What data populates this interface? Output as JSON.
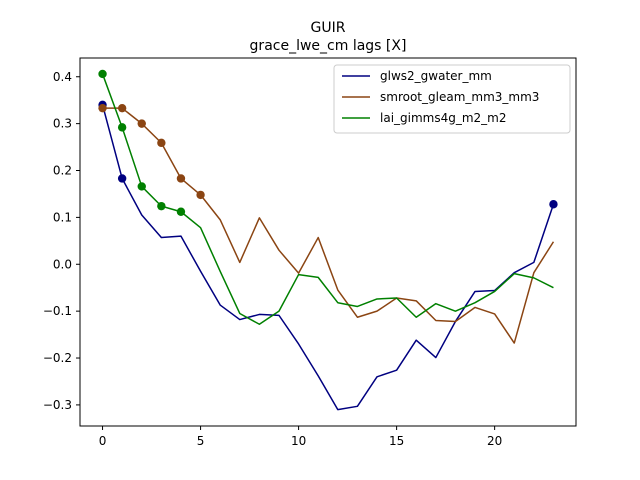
{
  "chart_data": {
    "type": "line",
    "title": "GUIR",
    "subtitle": "grace_lwe_cm lags [X]",
    "xlabel": "",
    "ylabel": "",
    "xlim": [
      -1.15,
      24.15
    ],
    "ylim": [
      -0.345,
      0.44
    ],
    "x_ticks": [
      0,
      5,
      10,
      15,
      20
    ],
    "y_ticks": [
      -0.3,
      -0.2,
      -0.1,
      0.0,
      0.1,
      0.2,
      0.3,
      0.4
    ],
    "x_tick_labels": [
      "0",
      "5",
      "10",
      "15",
      "20"
    ],
    "y_tick_labels": [
      "−0.3",
      "−0.2",
      "−0.1",
      "0.0",
      "0.1",
      "0.2",
      "0.3",
      "0.4"
    ],
    "grid": false,
    "legend_position": "top-right",
    "x": [
      0,
      1,
      2,
      3,
      4,
      5,
      6,
      7,
      8,
      9,
      10,
      11,
      12,
      13,
      14,
      15,
      16,
      17,
      18,
      19,
      20,
      21,
      22,
      23
    ],
    "series": [
      {
        "name": "glws2_gwater_mm",
        "color": "#000080",
        "values": [
          0.34,
          0.183,
          0.105,
          0.057,
          0.06,
          -0.015,
          -0.087,
          -0.118,
          -0.107,
          -0.109,
          -0.17,
          -0.238,
          -0.31,
          -0.303,
          -0.24,
          -0.226,
          -0.162,
          -0.199,
          -0.122,
          -0.058,
          -0.056,
          -0.018,
          0.004,
          0.128
        ],
        "marked_indices": [
          0,
          1,
          23
        ]
      },
      {
        "name": "smroot_gleam_mm3_mm3",
        "color": "#8B4513",
        "values": [
          0.333,
          0.333,
          0.3,
          0.259,
          0.183,
          0.148,
          0.095,
          0.004,
          0.099,
          0.03,
          -0.019,
          0.057,
          -0.055,
          -0.113,
          -0.1,
          -0.072,
          -0.078,
          -0.12,
          -0.122,
          -0.092,
          -0.106,
          -0.168,
          -0.018,
          0.048
        ],
        "marked_indices": [
          0,
          1,
          2,
          3,
          4,
          5
        ]
      },
      {
        "name": "lai_gimms4g_m2_m2",
        "color": "#008000",
        "values": [
          0.406,
          0.292,
          0.166,
          0.124,
          0.112,
          0.078,
          -0.015,
          -0.105,
          -0.128,
          -0.1,
          -0.022,
          -0.028,
          -0.082,
          -0.09,
          -0.074,
          -0.072,
          -0.113,
          -0.084,
          -0.1,
          -0.082,
          -0.058,
          -0.02,
          -0.029,
          -0.05
        ],
        "marked_indices": [
          0,
          1,
          2,
          3,
          4
        ]
      }
    ]
  }
}
